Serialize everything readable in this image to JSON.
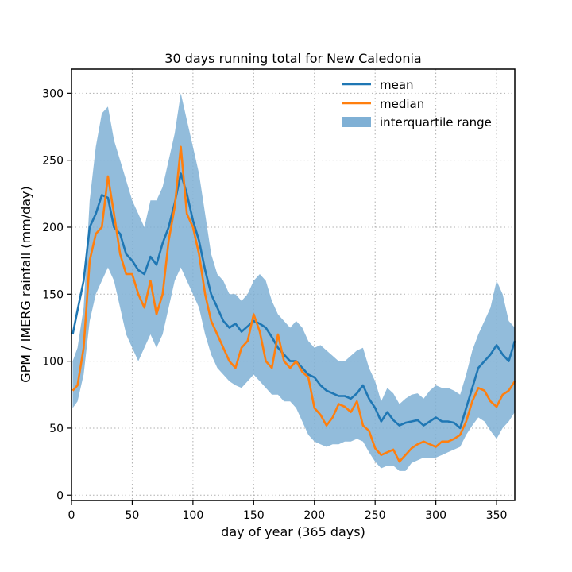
{
  "chart_data": {
    "type": "line",
    "title": "30 days running total for New Caledonia",
    "xlabel": "day of year (365 days)",
    "ylabel": "GPM / IMERG rainfall (mm/day)",
    "xlim": [
      0,
      365
    ],
    "ylim": [
      -4,
      318
    ],
    "xticks": [
      0,
      50,
      100,
      150,
      200,
      250,
      300,
      350
    ],
    "yticks": [
      0,
      50,
      100,
      150,
      200,
      250,
      300
    ],
    "grid": true,
    "legend_position": "top-right",
    "colors": {
      "mean": "#1f77b4",
      "median": "#ff7f0e",
      "iqr": "#7fb0d5"
    },
    "x": [
      1,
      5,
      10,
      15,
      20,
      25,
      30,
      35,
      40,
      45,
      50,
      55,
      60,
      65,
      70,
      75,
      80,
      85,
      90,
      95,
      100,
      105,
      110,
      115,
      120,
      125,
      130,
      135,
      140,
      145,
      150,
      155,
      160,
      165,
      170,
      175,
      180,
      185,
      190,
      195,
      200,
      205,
      210,
      215,
      220,
      225,
      230,
      235,
      240,
      245,
      250,
      255,
      260,
      265,
      270,
      275,
      280,
      285,
      290,
      295,
      300,
      305,
      310,
      315,
      320,
      325,
      330,
      335,
      340,
      345,
      350,
      355,
      360,
      365
    ],
    "series": [
      {
        "name": "mean",
        "values": [
          120,
          138,
          160,
          200,
          210,
          224,
          222,
          200,
          195,
          180,
          175,
          168,
          165,
          178,
          172,
          188,
          200,
          218,
          240,
          225,
          205,
          190,
          168,
          150,
          140,
          130,
          125,
          128,
          122,
          126,
          130,
          128,
          125,
          118,
          110,
          105,
          100,
          100,
          95,
          90,
          88,
          82,
          78,
          76,
          74,
          74,
          72,
          76,
          82,
          72,
          65,
          55,
          62,
          56,
          52,
          54,
          55,
          56,
          52,
          55,
          58,
          55,
          55,
          54,
          50,
          65,
          80,
          95,
          100,
          105,
          112,
          105,
          100,
          115
        ]
      },
      {
        "name": "median",
        "values": [
          78,
          82,
          110,
          175,
          195,
          200,
          238,
          210,
          180,
          165,
          165,
          150,
          140,
          160,
          135,
          150,
          190,
          215,
          260,
          210,
          200,
          180,
          150,
          130,
          120,
          110,
          100,
          95,
          110,
          115,
          135,
          122,
          100,
          95,
          120,
          100,
          95,
          100,
          92,
          88,
          65,
          60,
          52,
          58,
          68,
          66,
          62,
          70,
          52,
          48,
          35,
          30,
          32,
          34,
          25,
          30,
          35,
          38,
          40,
          38,
          36,
          40,
          40,
          42,
          45,
          55,
          70,
          80,
          78,
          70,
          66,
          75,
          78,
          85
        ]
      },
      {
        "name": "interquartile range",
        "lower": [
          65,
          70,
          90,
          130,
          150,
          160,
          170,
          160,
          140,
          120,
          110,
          100,
          110,
          120,
          110,
          120,
          140,
          160,
          170,
          160,
          150,
          140,
          120,
          105,
          95,
          90,
          85,
          82,
          80,
          85,
          90,
          85,
          80,
          75,
          75,
          70,
          70,
          65,
          55,
          45,
          40,
          38,
          36,
          38,
          38,
          40,
          40,
          42,
          40,
          32,
          25,
          20,
          22,
          22,
          18,
          18,
          24,
          26,
          28,
          28,
          28,
          30,
          32,
          34,
          36,
          45,
          52,
          58,
          55,
          48,
          42,
          50,
          55,
          62
        ],
        "upper": [
          100,
          110,
          140,
          220,
          260,
          285,
          290,
          265,
          250,
          235,
          220,
          210,
          200,
          220,
          220,
          230,
          250,
          270,
          300,
          280,
          260,
          240,
          210,
          180,
          165,
          160,
          150,
          150,
          145,
          150,
          160,
          165,
          160,
          145,
          135,
          130,
          125,
          130,
          125,
          115,
          110,
          112,
          108,
          104,
          100,
          100,
          104,
          108,
          110,
          95,
          85,
          70,
          80,
          76,
          68,
          72,
          75,
          76,
          72,
          78,
          82,
          80,
          80,
          78,
          75,
          90,
          108,
          120,
          130,
          140,
          160,
          150,
          130,
          125
        ]
      }
    ]
  }
}
